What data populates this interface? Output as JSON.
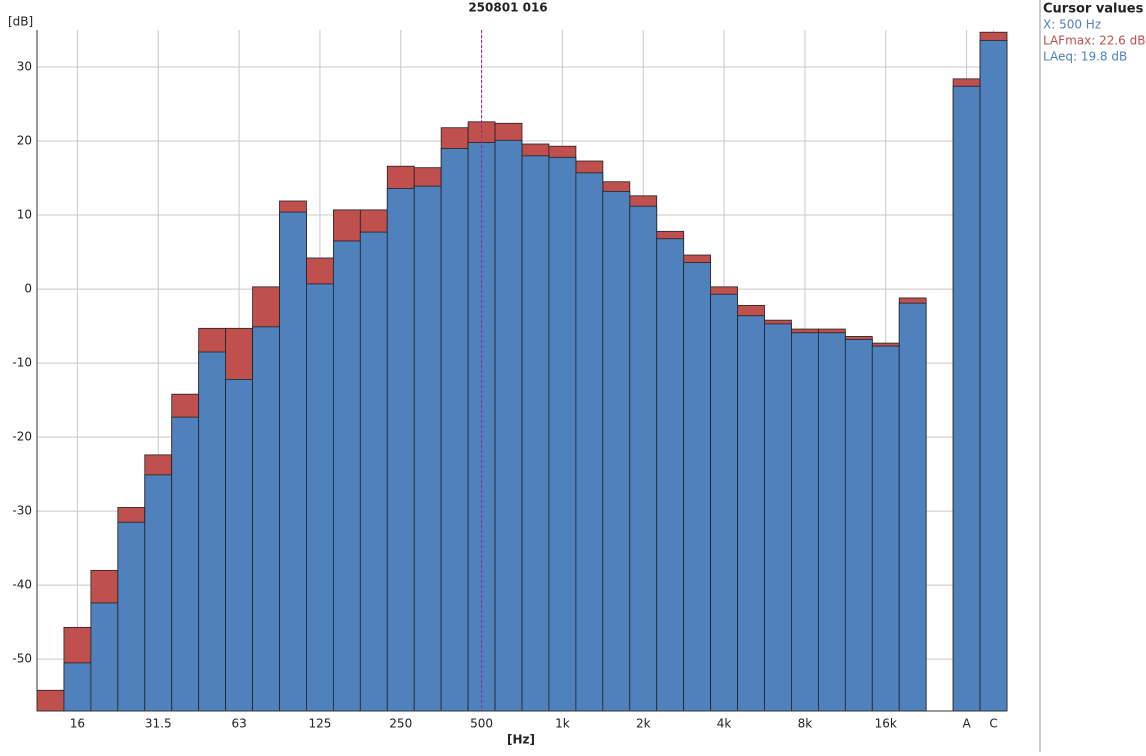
{
  "chart_data": {
    "type": "bar",
    "title": "250801 016",
    "y_label": "[dB]",
    "x_label": "[Hz]",
    "categories": [
      null,
      "16",
      null,
      null,
      "31.5",
      null,
      null,
      "63",
      null,
      null,
      "125",
      null,
      null,
      "250",
      null,
      null,
      "500",
      null,
      null,
      "1k",
      null,
      null,
      "2k",
      null,
      null,
      "4k",
      null,
      null,
      "8k",
      null,
      null,
      "16k",
      null,
      null,
      "A",
      "C"
    ],
    "series": [
      {
        "color": "#c0504d",
        "values": [
          -54.2,
          -45.7,
          -38.0,
          -29.5,
          -22.4,
          -14.2,
          -5.3,
          -5.3,
          0.3,
          11.9,
          4.2,
          10.7,
          10.7,
          16.6,
          16.4,
          21.8,
          22.6,
          22.4,
          19.6,
          19.3,
          17.3,
          14.5,
          12.6,
          7.8,
          4.6,
          0.3,
          -2.2,
          -4.2,
          -5.4,
          -5.4,
          -6.4,
          -7.3,
          -1.2,
          null,
          28.4,
          34.7
        ]
      },
      {
        "color": "#4f81bd",
        "values": [
          null,
          -50.5,
          -42.4,
          -31.5,
          -25.1,
          -17.3,
          -8.5,
          -12.2,
          -5.1,
          10.4,
          0.7,
          6.5,
          7.7,
          13.6,
          13.9,
          19.0,
          19.8,
          20.1,
          18.0,
          17.8,
          15.7,
          13.2,
          11.2,
          6.8,
          3.6,
          -0.7,
          -3.6,
          -4.7,
          -5.9,
          -5.9,
          -6.8,
          -7.7,
          -1.9,
          null,
          27.4,
          33.6
        ]
      }
    ],
    "ylim": [
      -57,
      35
    ],
    "yticks": [
      -50,
      -40,
      -30,
      -20,
      -10,
      0,
      10,
      20,
      30
    ],
    "grid": true,
    "cursor_index": 16,
    "cursor": {
      "title": "Cursor values",
      "x": "X: 500 Hz",
      "max": "LAFmax: 22.6 dB",
      "eq": "LAeq: 19.8 dB"
    }
  }
}
